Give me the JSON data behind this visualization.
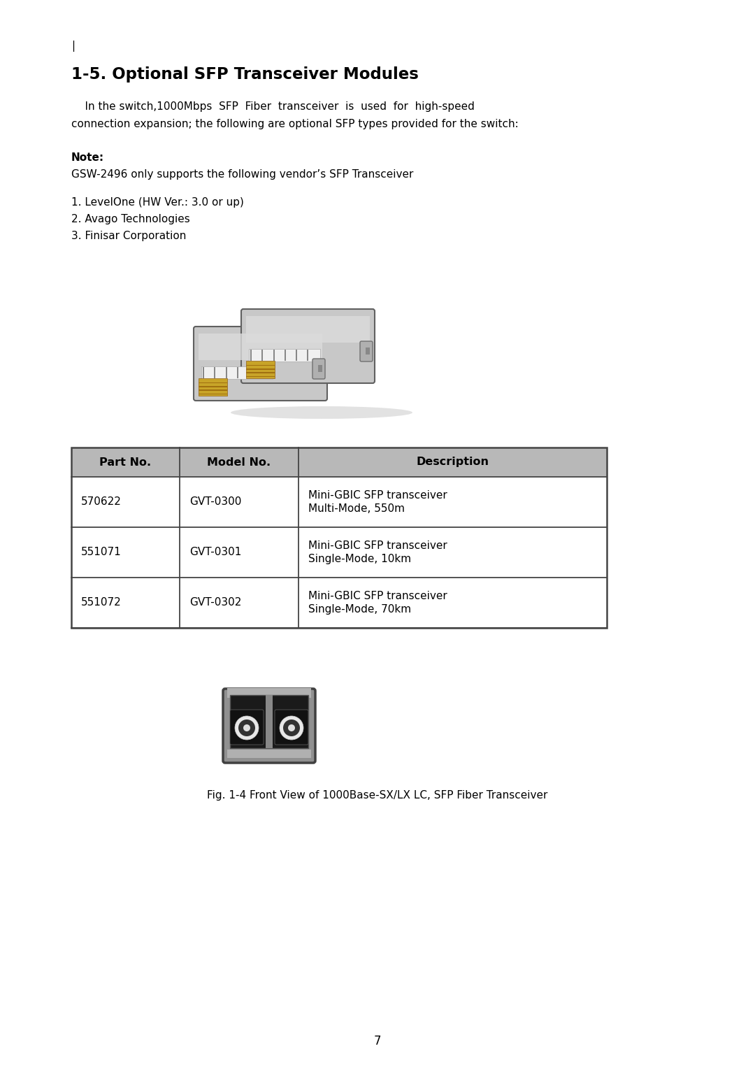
{
  "title": "1-5. Optional SFP Transceiver Modules",
  "pipe_char": "|",
  "note_label": "Note:",
  "note_text": "GSW-2496 only supports the following vendor’s SFP Transceiver",
  "vendors": [
    "1. LevelOne (HW Ver.: 3.0 or up)",
    "2. Avago Technologies",
    "3. Finisar Corporation"
  ],
  "table_headers": [
    "Part No.",
    "Model No.",
    "Description"
  ],
  "table_rows": [
    [
      "570622",
      "GVT-0300",
      "Mini-GBIC SFP transceiver\nMulti-Mode, 550m"
    ],
    [
      "551071",
      "GVT-0301",
      "Mini-GBIC SFP transceiver\nSingle-Mode, 10km"
    ],
    [
      "551072",
      "GVT-0302",
      "Mini-GBIC SFP transceiver\nSingle-Mode, 70km"
    ]
  ],
  "fig_caption": "Fig. 1-4 Front View of 1000Base-SX/LX LC, SFP Fiber Transceiver",
  "page_number": "7",
  "bg_color": "#ffffff",
  "body_line1": "    In the switch,1000Mbps  SFP  Fiber  transceiver  is  used  for  high-speed",
  "body_line2": "connection expansion; the following are optional SFP types provided for the switch:"
}
